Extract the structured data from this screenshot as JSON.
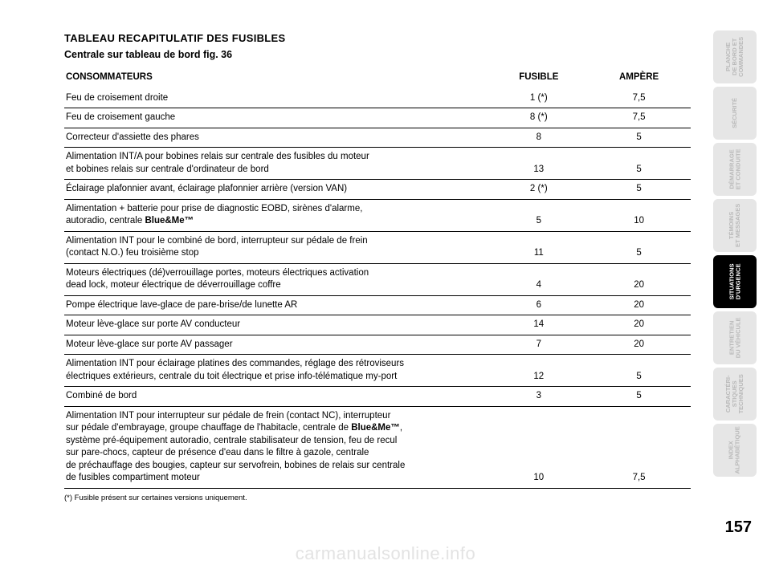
{
  "title": "TABLEAU RECAPITULATIF DES FUSIBLES",
  "subtitle": "Centrale sur tableau de bord fig. 36",
  "columns": {
    "c1": "CONSOMMATEURS",
    "c2": "FUSIBLE",
    "c3": "AMPÈRE"
  },
  "rows": [
    {
      "label": "Feu de croisement droite",
      "fuse": "1 (*)",
      "amp": "7,5"
    },
    {
      "label": "Feu de croisement gauche",
      "fuse": "8 (*)",
      "amp": "7,5"
    },
    {
      "label": "Correcteur d'assiette des phares",
      "fuse": "8",
      "amp": "5"
    },
    {
      "label": "Alimentation INT/A pour bobines relais sur centrale des fusibles du moteur\net bobines relais sur centrale d'ordinateur de bord",
      "fuse": "13",
      "amp": "5"
    },
    {
      "label": "Éclairage plafonnier avant, éclairage plafonnier arrière (version VAN)",
      "fuse": "2 (*)",
      "amp": "5"
    },
    {
      "label": "Alimentation + batterie pour prise de diagnostic EOBD, sirènes d'alarme,\nautoradio, centrale Blue&Me™",
      "fuse": "5",
      "amp": "10"
    },
    {
      "label": "Alimentation INT pour le combiné de bord, interrupteur sur pédale de frein\n(contact N.O.) feu troisième stop",
      "fuse": "11",
      "amp": "5"
    },
    {
      "label": "Moteurs électriques (dé)verrouillage portes, moteurs électriques activation\ndead lock, moteur électrique de déverrouillage coffre",
      "fuse": "4",
      "amp": "20"
    },
    {
      "label": "Pompe électrique lave-glace de pare-brise/de lunette AR",
      "fuse": "6",
      "amp": "20"
    },
    {
      "label": "Moteur lève-glace sur porte AV conducteur",
      "fuse": "14",
      "amp": "20"
    },
    {
      "label": "Moteur lève-glace sur porte AV passager",
      "fuse": "7",
      "amp": "20"
    },
    {
      "label": "Alimentation INT pour éclairage platines des commandes, réglage des rétroviseurs\nélectriques extérieurs, centrale du toit électrique et prise info-télématique my-port",
      "fuse": "12",
      "amp": "5"
    },
    {
      "label": "Combiné de bord",
      "fuse": "3",
      "amp": "5"
    },
    {
      "label": "Alimentation INT pour interrupteur sur pédale de frein (contact NC), interrupteur\nsur pédale d'embrayage, groupe chauffage de l'habitacle, centrale de Blue&Me™,\nsystème pré-équipement autoradio, centrale stabilisateur de tension, feu de recul\nsur pare-chocs, capteur de présence d'eau dans le filtre à gazole, centrale\nde préchauffage des bougies, capteur sur servofrein, bobines de relais sur centrale\nde fusibles compartiment moteur",
      "fuse": "10",
      "amp": "7,5"
    }
  ],
  "footnote": "(*) Fusible présent sur certaines versions uniquement.",
  "tabs": [
    {
      "label": "PLANCHE\nDE BORD ET\nCOMMANDES",
      "active": false
    },
    {
      "label": "SÉCURITÉ",
      "active": false
    },
    {
      "label": "DÉMARRAGE\nET CONDUITE",
      "active": false
    },
    {
      "label": "TÉMOINS\nET MESSAGES",
      "active": false
    },
    {
      "label": "SITUATIONS\nD'URGENCE",
      "active": true
    },
    {
      "label": "ENTRETIEN\nDU VÉHICULE",
      "active": false
    },
    {
      "label": "CARACTÉRI-\nSTIQUES\nTECHNIQUES",
      "active": false
    },
    {
      "label": "INDEX\nALPHABÉTIQUE",
      "active": false
    }
  ],
  "page_number": "157",
  "watermark": "carmanualsonline.info",
  "style": {
    "background_color": "#ffffff",
    "text_color": "#000000",
    "tab_inactive_bg": "#e6e6e6",
    "tab_inactive_fg": "#b9b9b9",
    "tab_active_bg": "#000000",
    "tab_active_fg": "#ffffff",
    "watermark_color": "#e3e3e3",
    "rule_color": "#000000",
    "table_col_widths_pct": [
      68,
      16,
      16
    ]
  }
}
